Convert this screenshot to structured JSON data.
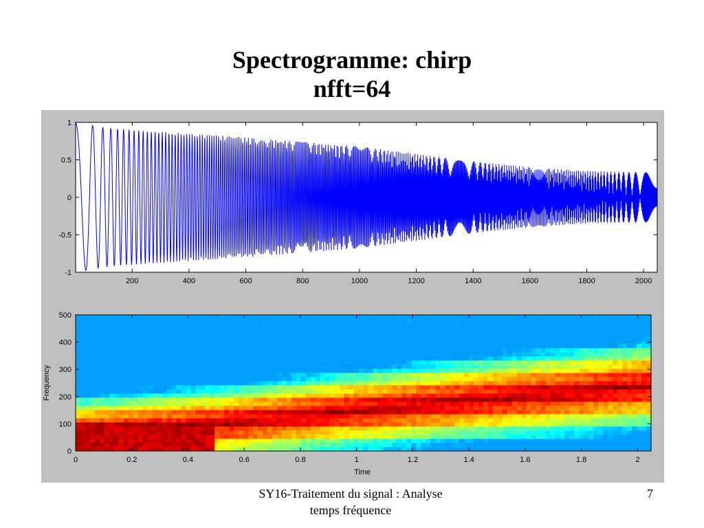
{
  "slide": {
    "title_line1": "Spectrogramme: chirp",
    "title_line2": "nfft=64",
    "footer_line1": "SY16-Traitement du signal : Analyse",
    "footer_line2": "temps fréquence",
    "page_number": "7"
  },
  "colors": {
    "panel_bg": "#c0c0c0",
    "plot_bg": "#ffffff",
    "signal_line": "#0000ff",
    "colormap": "jet"
  },
  "chart_data": [
    {
      "type": "line",
      "title": "",
      "xlabel": "",
      "ylabel": "",
      "xlim": [
        1,
        2048
      ],
      "ylim": [
        -1,
        1
      ],
      "xticks": [
        200,
        400,
        600,
        800,
        1000,
        1200,
        1400,
        1600,
        1800,
        2000
      ],
      "yticks": [
        -1,
        -0.5,
        0,
        0.5,
        1
      ],
      "ytick_labels": [
        "-1",
        "-0.5",
        "0",
        "0.5",
        "1"
      ],
      "series": [
        {
          "signal": "chirp",
          "samples": 2048,
          "start_value": 1,
          "first_minimum": {
            "x": 55,
            "y": -0.97
          },
          "envelope": {
            "x": [
              1,
              100,
              200,
              400,
              600,
              800,
              1000,
              1200,
              1400,
              1600,
              1800,
              2048
            ],
            "amplitude": [
              1,
              0.93,
              0.9,
              0.85,
              0.8,
              0.74,
              0.68,
              0.58,
              0.48,
              0.4,
              0.35,
              0.33
            ]
          }
        }
      ],
      "grid": false
    },
    {
      "type": "heatmap",
      "title": "",
      "xlabel": "Time",
      "ylabel": "Frequency",
      "xlim": [
        0,
        2.048
      ],
      "ylim": [
        0,
        500
      ],
      "xticks": [
        0,
        0.2,
        0.4,
        0.6,
        0.8,
        1,
        1.2,
        1.4,
        1.6,
        1.8,
        2
      ],
      "xtick_labels": [
        "0",
        "0.2",
        "0.4",
        "0.6",
        "0.8",
        "1",
        "1.2",
        "1.4",
        "1.6",
        "1.8",
        "2"
      ],
      "yticks": [
        0,
        100,
        200,
        300,
        400,
        500
      ],
      "colormap": "jet",
      "ridge": {
        "time": [
          0,
          0.5,
          1,
          1.5,
          2.048
        ],
        "frequency": [
          70,
          100,
          150,
          195,
          240
        ]
      },
      "grid": false
    }
  ]
}
